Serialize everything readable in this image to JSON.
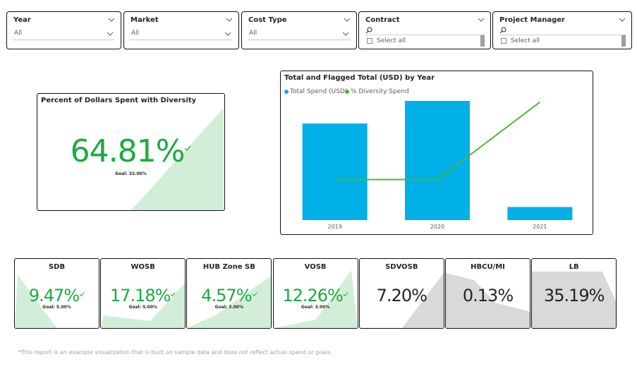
{
  "slicers": [
    {
      "title": "Year",
      "value": "All",
      "type": "dropdown"
    },
    {
      "title": "Market",
      "value": "All",
      "type": "dropdown"
    },
    {
      "title": "Cost Type",
      "value": "All",
      "type": "dropdown"
    },
    {
      "title": "Contract",
      "list_item": "Select all",
      "type": "list"
    },
    {
      "title": "Project Manager",
      "list_item": "Select all",
      "type": "list"
    }
  ],
  "diversity_card": {
    "title": "Percent of Dollars Spent with Diversity",
    "value": "64.81%",
    "goal": "Goal: 32.00%",
    "status_color": "#1aab40"
  },
  "chart": {
    "title": "Total and Flagged Total (USD) by Year",
    "legend": [
      "Total Spend (USD)",
      "% Diversity Spend"
    ]
  },
  "chart_data": {
    "type": "bar",
    "title": "Total and Flagged Total (USD) by Year",
    "categories": [
      "2019",
      "2020",
      "2021"
    ],
    "series": [
      {
        "name": "Total Spend (USD)",
        "type": "bar",
        "color": "#01b0e6",
        "values": [
          0.81,
          1.0,
          0.11
        ]
      },
      {
        "name": "% Diversity Spend",
        "type": "line",
        "color": "#52b539",
        "values": [
          0.34,
          0.34,
          0.99
        ]
      }
    ],
    "ylim": [
      0,
      1
    ],
    "grid": false,
    "legend_position": "top-left"
  },
  "kpis": [
    {
      "title": "SDB",
      "value": "9.47%",
      "goal": "Goal: 5.00%",
      "met": true
    },
    {
      "title": "WOSB",
      "value": "17.18%",
      "goal": "Goal: 5.00%",
      "met": true
    },
    {
      "title": "HUB Zone SB",
      "value": "4.57%",
      "goal": "Goal: 3.00%",
      "met": true
    },
    {
      "title": "VOSB",
      "value": "12.26%",
      "goal": "Goal: 3.00%",
      "met": true
    },
    {
      "title": "SDVOSB",
      "value": "7.20%",
      "goal": "",
      "met": false
    },
    {
      "title": "HBCU/MI",
      "value": "0.13%",
      "goal": "",
      "met": false
    },
    {
      "title": "LB",
      "value": "35.19%",
      "goal": "",
      "met": false
    }
  ],
  "footnote": "*This report is an example visualization that is built on sample data and does not reflect actual spend or goals.",
  "colors": {
    "green": "#1aab40",
    "light_green": "#d3eed8",
    "light_grey": "#d9d9d9",
    "bar_blue": "#01b0e6",
    "line_green": "#52b539"
  }
}
